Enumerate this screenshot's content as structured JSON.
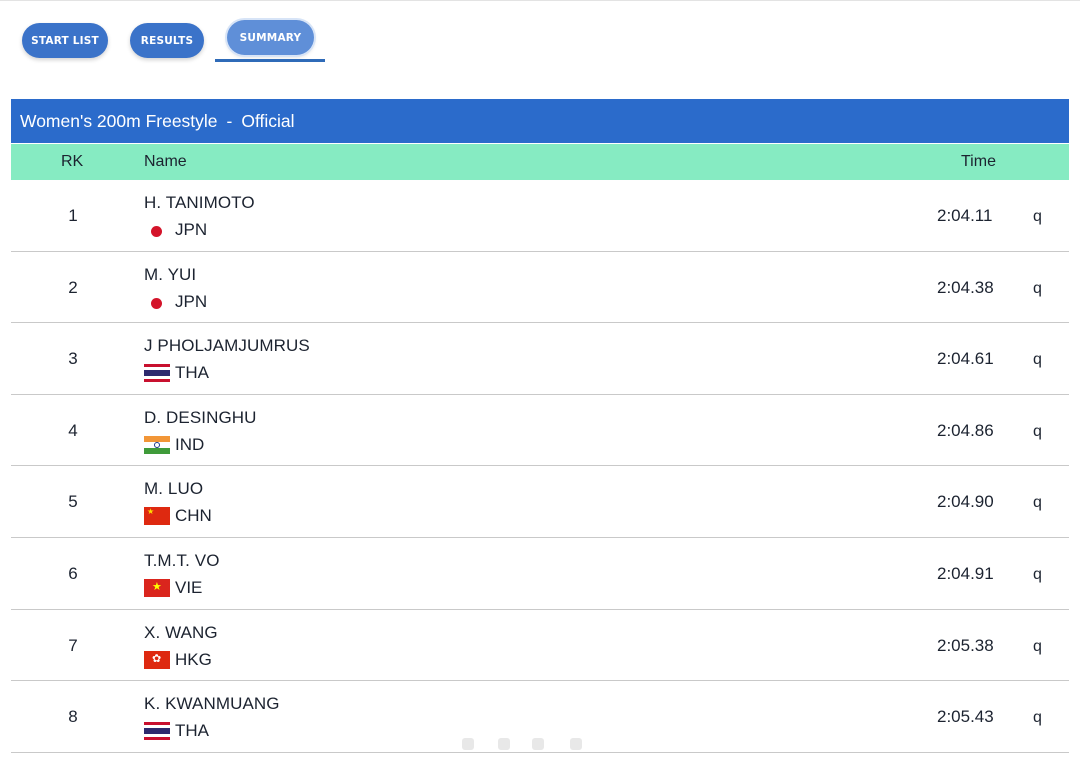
{
  "tabs": [
    {
      "label": "START LIST"
    },
    {
      "label": "RESULTS"
    },
    {
      "label": "SUMMARY"
    }
  ],
  "active_tab": "SUMMARY",
  "event": {
    "title": "Women's 200m Freestyle",
    "separator": "-",
    "status": "Official"
  },
  "columns": {
    "rank": "RK",
    "name": "Name",
    "time": "Time"
  },
  "rows": [
    {
      "rank": "1",
      "name": "H. TANIMOTO",
      "country": "JPN",
      "time": "2:04.11",
      "qual": "q"
    },
    {
      "rank": "2",
      "name": "M. YUI",
      "country": "JPN",
      "time": "2:04.38",
      "qual": "q"
    },
    {
      "rank": "3",
      "name": "J PHOLJAMJUMRUS",
      "country": "THA",
      "time": "2:04.61",
      "qual": "q"
    },
    {
      "rank": "4",
      "name": "D. DESINGHU",
      "country": "IND",
      "time": "2:04.86",
      "qual": "q"
    },
    {
      "rank": "5",
      "name": "M. LUO",
      "country": "CHN",
      "time": "2:04.90",
      "qual": "q"
    },
    {
      "rank": "6",
      "name": "T.M.T. VO",
      "country": "VIE",
      "time": "2:04.91",
      "qual": "q"
    },
    {
      "rank": "7",
      "name": "X. WANG",
      "country": "HKG",
      "time": "2:05.38",
      "qual": "q"
    },
    {
      "rank": "8",
      "name": "K. KWANMUANG",
      "country": "THA",
      "time": "2:05.43",
      "qual": "q"
    }
  ],
  "colors": {
    "tab_button": "#3b73c9",
    "tab_active": "#5f8fd8",
    "title_bar": "#2b6bcb",
    "header_row": "#86ebc2"
  }
}
